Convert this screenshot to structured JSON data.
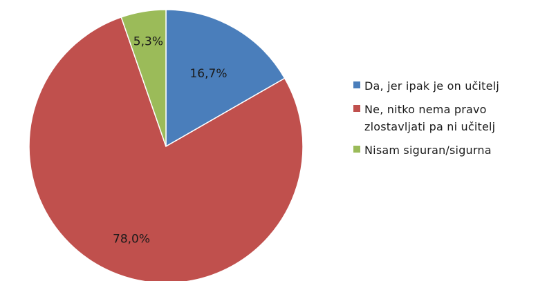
{
  "chart_data": {
    "type": "pie",
    "title": "",
    "start_angle_deg": 0,
    "direction": "clockwise",
    "legend_position": "right",
    "slices": [
      {
        "name": "Da, jer ipak je on učitelj",
        "value": 16.7,
        "label": "16,7%",
        "color": "#4a7ebb"
      },
      {
        "name": "Ne, nitko nema pravo\nzlostavljati pa ni učitelj",
        "value": 78.0,
        "label": "78,0%",
        "color": "#c0504d"
      },
      {
        "name": "Nisam siguran/sigurna",
        "value": 5.3,
        "label": "5,3%",
        "color": "#9bbb59"
      }
    ]
  }
}
